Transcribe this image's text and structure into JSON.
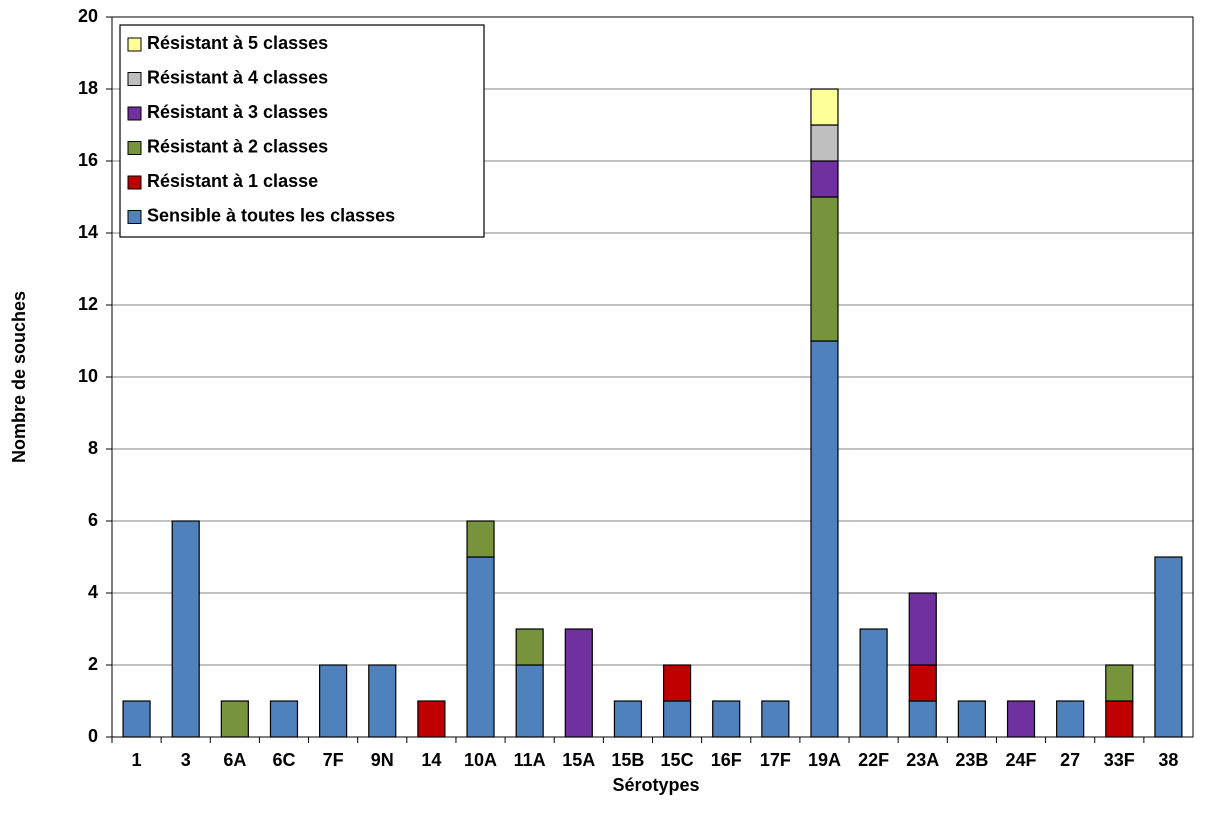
{
  "chart_data": {
    "type": "stacked_bar",
    "x_label": "Sérotypes",
    "y_label": "Nombre de souches",
    "categories": [
      "1",
      "3",
      "6A",
      "6C",
      "7F",
      "9N",
      "14",
      "10A",
      "11A",
      "15A",
      "15B",
      "15C",
      "16F",
      "17F",
      "19A",
      "22F",
      "23A",
      "23B",
      "24F",
      "27",
      "33F",
      "38"
    ],
    "series": [
      {
        "name": "Sensible à toutes les classes",
        "color": "#4f81bd",
        "values": [
          1,
          6,
          0,
          1,
          2,
          2,
          0,
          5,
          2,
          0,
          1,
          1,
          1,
          1,
          11,
          3,
          1,
          1,
          0,
          1,
          0,
          5
        ]
      },
      {
        "name": "Résistant à 1 classe",
        "color": "#c00000",
        "values": [
          0,
          0,
          0,
          0,
          0,
          0,
          1,
          0,
          0,
          0,
          0,
          1,
          0,
          0,
          0,
          0,
          1,
          0,
          0,
          0,
          1,
          0
        ]
      },
      {
        "name": "Résistant à 2 classes",
        "color": "#77933c",
        "values": [
          0,
          0,
          1,
          0,
          0,
          0,
          0,
          1,
          1,
          0,
          0,
          0,
          0,
          0,
          4,
          0,
          0,
          0,
          0,
          0,
          1,
          0
        ]
      },
      {
        "name": "Résistant à 3 classes",
        "color": "#7030a0",
        "values": [
          0,
          0,
          0,
          0,
          0,
          0,
          0,
          0,
          0,
          3,
          0,
          0,
          0,
          0,
          1,
          0,
          2,
          0,
          1,
          0,
          0,
          0
        ]
      },
      {
        "name": "Résistant à 4 classes",
        "color": "#bfbfbf",
        "values": [
          0,
          0,
          0,
          0,
          0,
          0,
          0,
          0,
          0,
          0,
          0,
          0,
          0,
          0,
          1,
          0,
          0,
          0,
          0,
          0,
          0,
          0
        ]
      },
      {
        "name": "Résistant à 5 classes",
        "color": "#ffff99",
        "values": [
          0,
          0,
          0,
          0,
          0,
          0,
          0,
          0,
          0,
          0,
          0,
          0,
          0,
          0,
          1,
          0,
          0,
          0,
          0,
          0,
          0,
          0
        ]
      }
    ],
    "ylim": [
      0,
      20
    ],
    "yticks": [
      0,
      2,
      4,
      6,
      8,
      10,
      12,
      14,
      16,
      18,
      20
    ],
    "grid": true,
    "legend": "upper-left"
  }
}
